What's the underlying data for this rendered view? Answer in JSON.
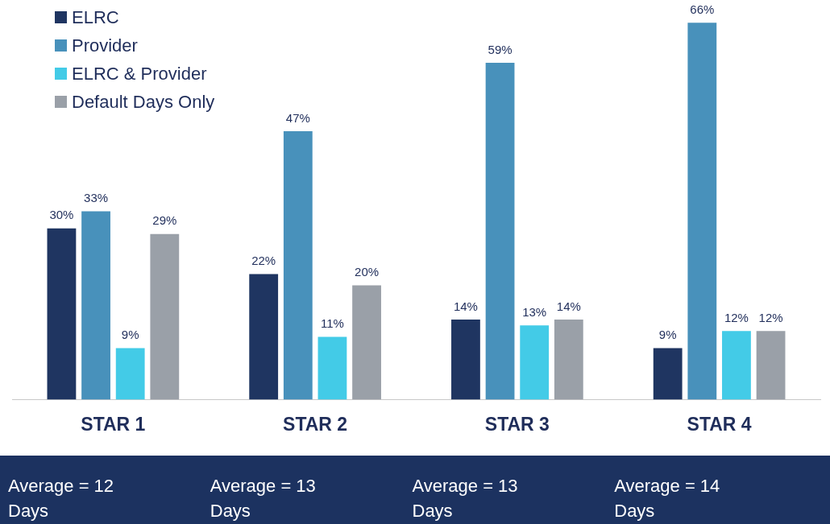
{
  "chart_data": {
    "type": "bar",
    "categories": [
      "STAR 1",
      "STAR 2",
      "STAR 3",
      "STAR 4"
    ],
    "series": [
      {
        "name": "ELRC",
        "color": "#1f3561",
        "values": [
          30,
          22,
          14,
          9
        ],
        "value_labels": [
          "30%",
          "22%",
          "14%",
          "9%"
        ]
      },
      {
        "name": "Provider",
        "color": "#4891bb",
        "values": [
          33,
          47,
          59,
          66
        ],
        "value_labels": [
          "33%",
          "47%",
          "59%",
          "66%"
        ]
      },
      {
        "name": "ELRC & Provider",
        "color": "#43cbe7",
        "values": [
          9,
          11,
          13,
          12
        ],
        "value_labels": [
          "9%",
          "11%",
          "13%",
          "12%"
        ]
      },
      {
        "name": "Default Days Only",
        "color": "#9aa0a8",
        "values": [
          29,
          20,
          14,
          12
        ],
        "value_labels": [
          "29%",
          "20%",
          "14%",
          "12%"
        ]
      }
    ],
    "tick_labels": "x",
    "grid": false,
    "legend": "top left",
    "annotations": [
      "Average  = 12 Days",
      "Average  = 13 Days",
      "Average  = 13 Days",
      "Average  = 14 Days"
    ]
  }
}
